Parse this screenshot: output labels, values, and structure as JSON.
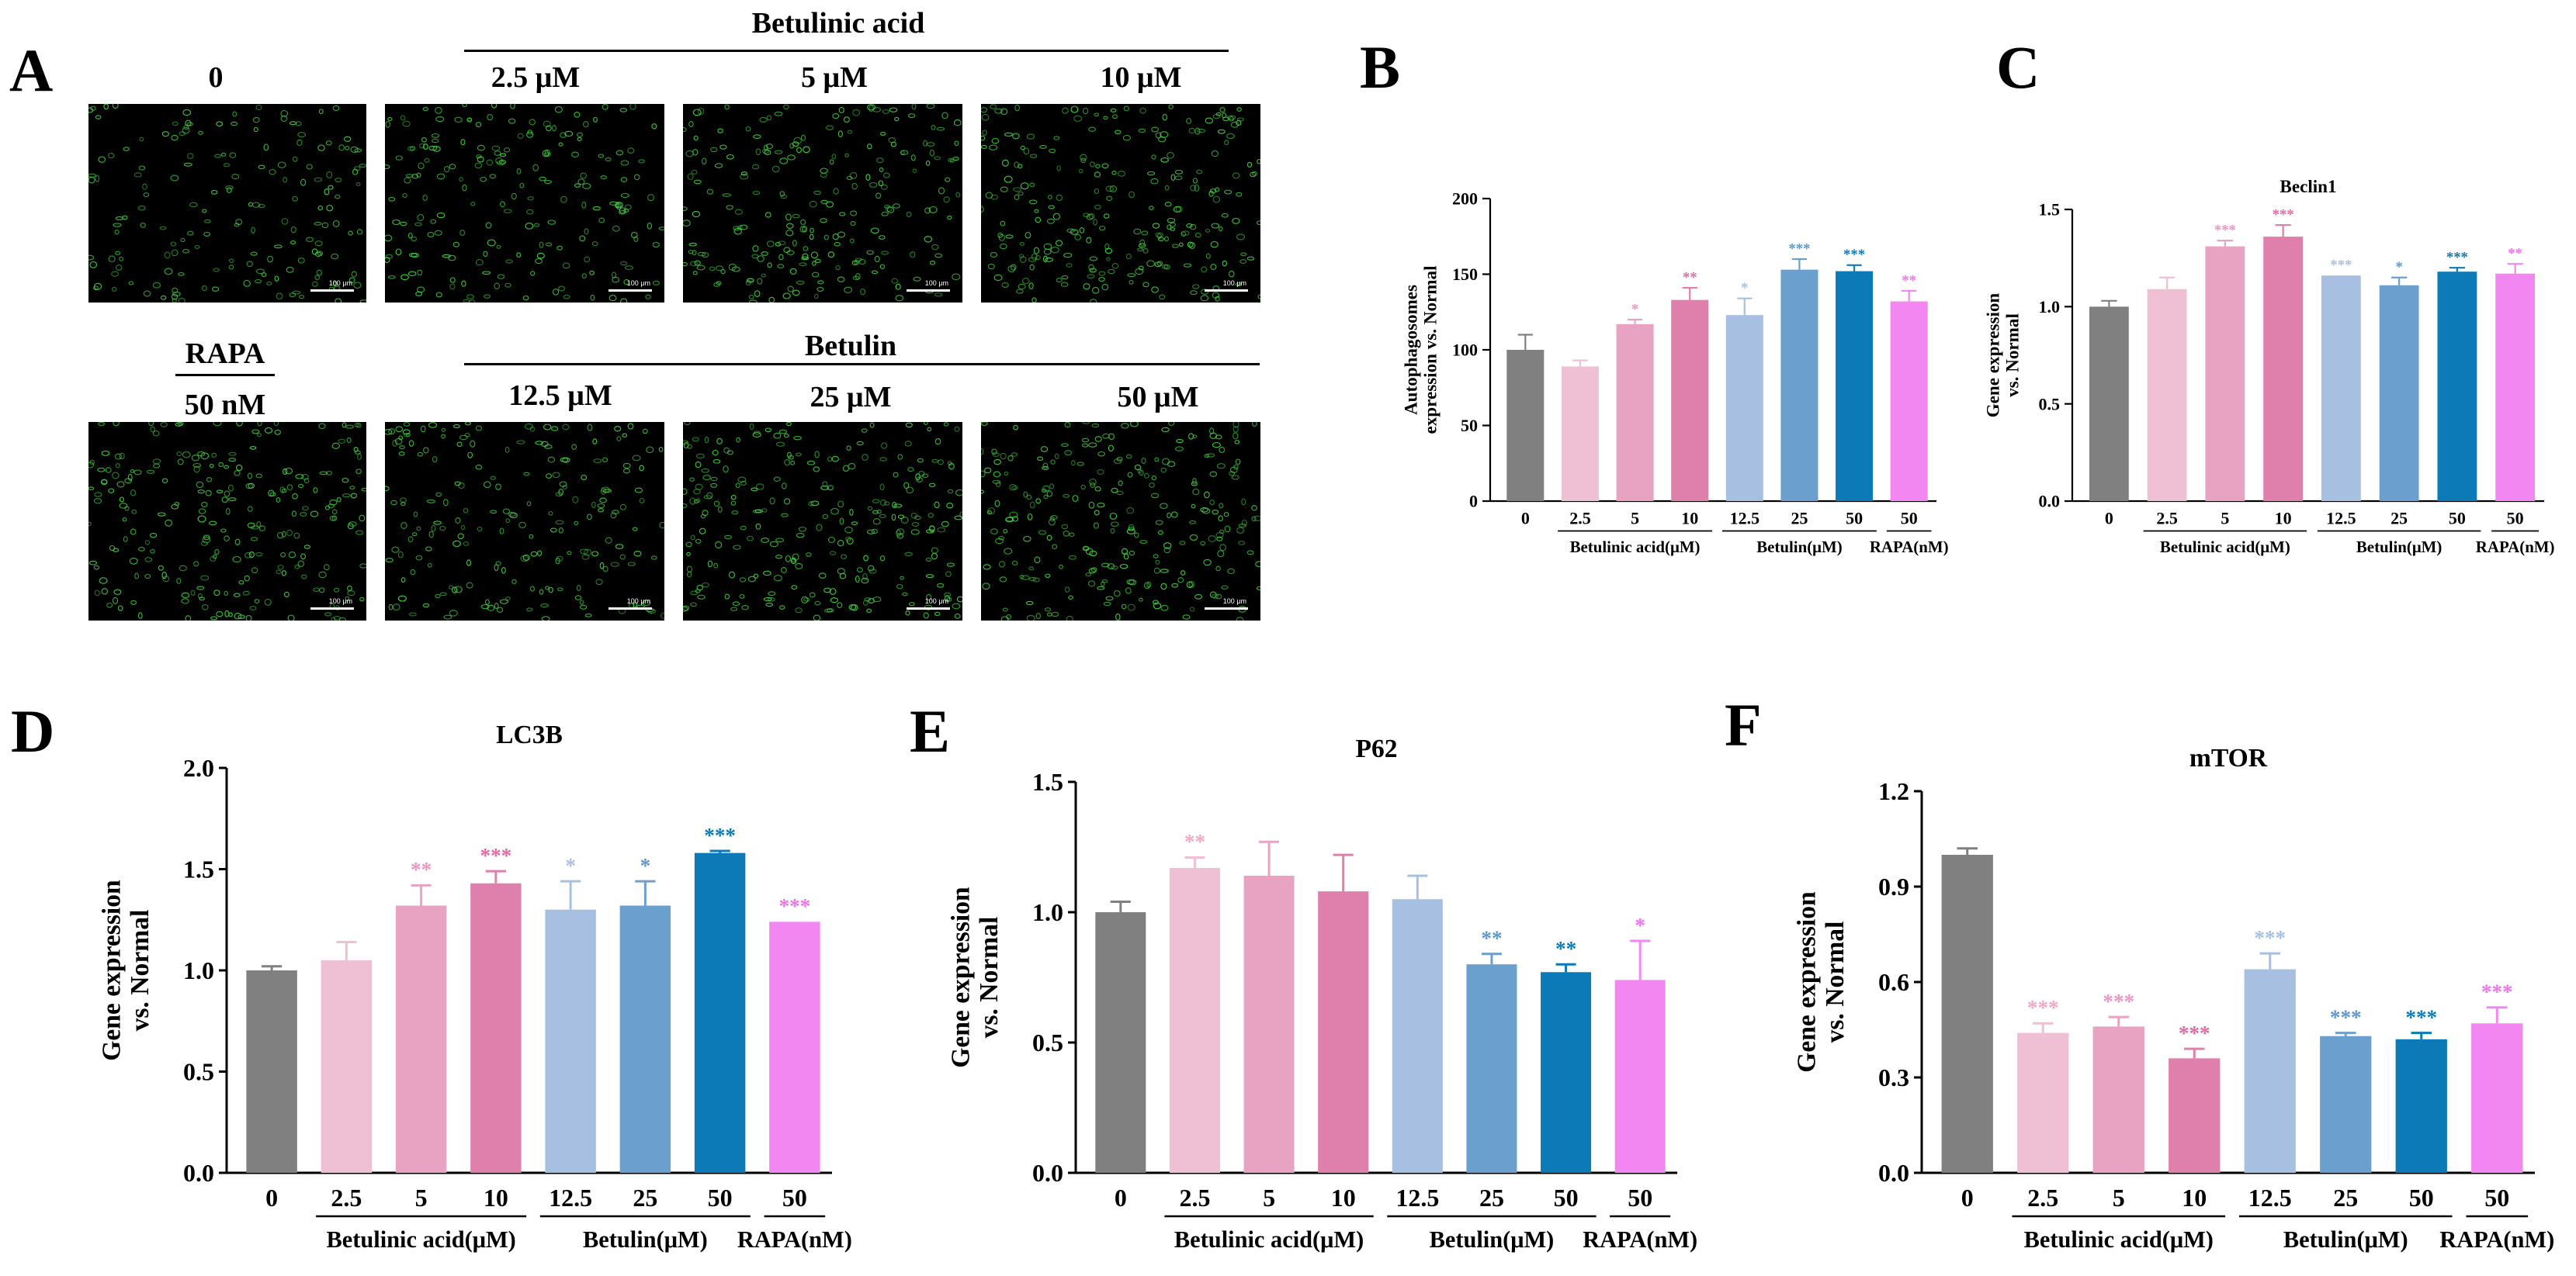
{
  "panel_a": {
    "letter": "A",
    "row1": {
      "group_label": "Betulinic acid",
      "images": [
        {
          "label": "0",
          "scale": "100 μm",
          "density": 170
        },
        {
          "label": "2.5 μM",
          "scale": "100 μm",
          "density": 200
        },
        {
          "label": "5 μM",
          "scale": "100 μm",
          "density": 230
        },
        {
          "label": "10 μM",
          "scale": "100 μm",
          "density": 250
        }
      ]
    },
    "row2": {
      "control_label": "RAPA",
      "group_label": "Betulin",
      "images": [
        {
          "label": "50 nM",
          "scale": "100 μm",
          "density": 240
        },
        {
          "label": "12.5 μM",
          "scale": "100 μm",
          "density": 200
        },
        {
          "label": "25 μM",
          "scale": "100 μm",
          "density": 260
        },
        {
          "label": "50 μM",
          "scale": "100 μm",
          "density": 260
        }
      ]
    },
    "fluorescence_color": "#3fcf3a"
  },
  "chart_data": [
    {
      "id": "B",
      "letter": "B",
      "type": "bar",
      "title": "",
      "ylabel": "Autophagosomes\nexpression vs. Normal",
      "xlabel": "",
      "ylim": [
        0,
        200
      ],
      "yticks": [
        "0",
        "50",
        "100",
        "150",
        "200"
      ],
      "categories": [
        "0",
        "2.5",
        "5",
        "10",
        "12.5",
        "25",
        "50",
        "50"
      ],
      "values": [
        100,
        89,
        117,
        133,
        123,
        153,
        152,
        132
      ],
      "errors": [
        10,
        4,
        3,
        8,
        11,
        7,
        4,
        7
      ],
      "significance": [
        "",
        "",
        "*",
        "**",
        "*",
        "***",
        "***",
        "**"
      ],
      "groups": [
        {
          "label": "Betulinic acid(μM)",
          "from": 1,
          "to": 3
        },
        {
          "label": "Betulin(μM)",
          "from": 4,
          "to": 6
        },
        {
          "label": "RAPA(nM)",
          "from": 7,
          "to": 7
        }
      ]
    },
    {
      "id": "C",
      "letter": "C",
      "type": "bar",
      "title": "Beclin1",
      "ylabel": "Gene expression\nvs. Normal",
      "xlabel": "",
      "ylim": [
        0,
        1.5
      ],
      "yticks": [
        "0.0",
        "0.5",
        "1.0",
        "1.5"
      ],
      "categories": [
        "0",
        "2.5",
        "5",
        "10",
        "12.5",
        "25",
        "50",
        "50"
      ],
      "values": [
        1.0,
        1.09,
        1.31,
        1.36,
        1.16,
        1.11,
        1.18,
        1.17
      ],
      "errors": [
        0.03,
        0.06,
        0.03,
        0.06,
        0.0,
        0.04,
        0.02,
        0.05
      ],
      "significance": [
        "",
        "",
        "***",
        "***",
        "***",
        "*",
        "***",
        "**"
      ],
      "groups": [
        {
          "label": "Betulinic acid(μM)",
          "from": 1,
          "to": 3
        },
        {
          "label": "Betulin(μM)",
          "from": 4,
          "to": 6
        },
        {
          "label": "RAPA(nM)",
          "from": 7,
          "to": 7
        }
      ]
    },
    {
      "id": "D",
      "letter": "D",
      "type": "bar",
      "title": "LC3B",
      "ylabel": "Gene expression\nvs. Normal",
      "xlabel": "",
      "ylim": [
        0,
        2.0
      ],
      "yticks": [
        "0.0",
        "0.5",
        "1.0",
        "1.5",
        "2.0"
      ],
      "categories": [
        "0",
        "2.5",
        "5",
        "10",
        "12.5",
        "25",
        "50",
        "50"
      ],
      "values": [
        1.0,
        1.05,
        1.32,
        1.43,
        1.3,
        1.32,
        1.58,
        1.24
      ],
      "errors": [
        0.02,
        0.09,
        0.1,
        0.06,
        0.14,
        0.12,
        0.01,
        0.0
      ],
      "significance": [
        "",
        "",
        "**",
        "***",
        "*",
        "*",
        "***",
        "***"
      ],
      "groups": [
        {
          "label": "Betulinic acid(μM)",
          "from": 1,
          "to": 3
        },
        {
          "label": "Betulin(μM)",
          "from": 4,
          "to": 6
        },
        {
          "label": "RAPA(nM)",
          "from": 7,
          "to": 7
        }
      ]
    },
    {
      "id": "E",
      "letter": "E",
      "type": "bar",
      "title": "P62",
      "ylabel": "Gene expression\nvs. Normal",
      "xlabel": "",
      "ylim": [
        0,
        1.5
      ],
      "yticks": [
        "0.0",
        "0.5",
        "1.0",
        "1.5"
      ],
      "categories": [
        "0",
        "2.5",
        "5",
        "10",
        "12.5",
        "25",
        "50",
        "50"
      ],
      "values": [
        1.0,
        1.17,
        1.14,
        1.08,
        1.05,
        0.8,
        0.77,
        0.74
      ],
      "errors": [
        0.04,
        0.04,
        0.13,
        0.14,
        0.09,
        0.04,
        0.03,
        0.15
      ],
      "significance": [
        "",
        "**",
        "",
        "",
        "",
        "**",
        "**",
        "*"
      ],
      "groups": [
        {
          "label": "Betulinic acid(μM)",
          "from": 1,
          "to": 3
        },
        {
          "label": "Betulin(μM)",
          "from": 4,
          "to": 6
        },
        {
          "label": "RAPA(nM)",
          "from": 7,
          "to": 7
        }
      ]
    },
    {
      "id": "F",
      "letter": "F",
      "type": "bar",
      "title": "mTOR",
      "ylabel": "Gene expression\nvs. Normal",
      "xlabel": "",
      "ylim": [
        0,
        1.2
      ],
      "yticks": [
        "0.0",
        "0.3",
        "0.6",
        "0.9",
        "1.2"
      ],
      "categories": [
        "0",
        "2.5",
        "5",
        "10",
        "12.5",
        "25",
        "50",
        "50"
      ],
      "values": [
        1.0,
        0.44,
        0.46,
        0.36,
        0.64,
        0.43,
        0.42,
        0.47
      ],
      "errors": [
        0.02,
        0.03,
        0.03,
        0.03,
        0.05,
        0.01,
        0.02,
        0.05
      ],
      "significance": [
        "",
        "***",
        "***",
        "***",
        "***",
        "***",
        "***",
        "***"
      ],
      "groups": [
        {
          "label": "Betulinic acid(μM)",
          "from": 1,
          "to": 3
        },
        {
          "label": "Betulin(μM)",
          "from": 4,
          "to": 6
        },
        {
          "label": "RAPA(nM)",
          "from": 7,
          "to": 7
        }
      ]
    }
  ],
  "bar_colors": [
    "#808080",
    "#efbfd3",
    "#e8a2c2",
    "#df7fab",
    "#a7c0e2",
    "#6b9fcd",
    "#0b7ab6",
    "#f387f1"
  ],
  "sig_colors": [
    "#808080",
    "#efa9c6",
    "#e997bf",
    "#e06aa2",
    "#a7c0e2",
    "#5f97c9",
    "#0b7ab6",
    "#f370ef"
  ]
}
